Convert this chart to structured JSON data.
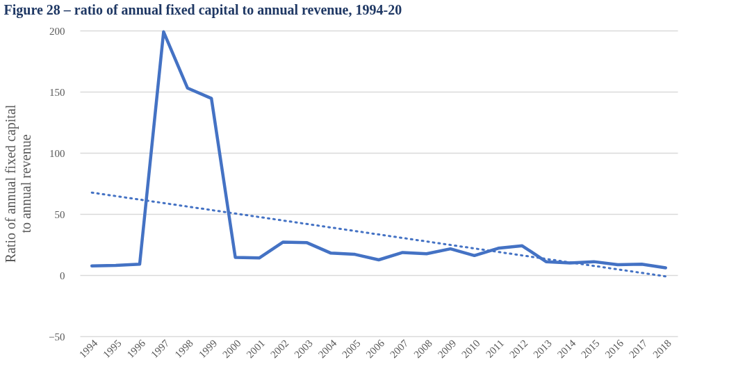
{
  "chart_data": {
    "type": "line",
    "title": "Figure 28 – ratio of annual fixed capital to annual revenue, 1994-20",
    "ylabel": "Ratio of annual fixed capital to annual revenue",
    "categories": [
      "1994",
      "1995",
      "1996",
      "1997",
      "1998",
      "1999",
      "2000",
      "2001",
      "2002",
      "2003",
      "2004",
      "2005",
      "2006",
      "2007",
      "2008",
      "2009",
      "2010",
      "2011",
      "2012",
      "2013",
      "2014",
      "2015",
      "2016",
      "2017",
      "2018"
    ],
    "series": [
      {
        "color": "#4472c4",
        "line_style": "solid",
        "values": [
          7.5,
          8,
          9,
          199,
          153,
          144.5,
          14.5,
          14,
          27,
          26.5,
          18,
          17,
          12.5,
          18.5,
          17.5,
          21.5,
          16,
          22,
          24,
          11,
          10,
          11,
          8.5,
          9,
          6
        ]
      },
      {
        "type": "line",
        "color": "#4472c4",
        "line_style": "dotted",
        "values": [
          67.5,
          null,
          null,
          null,
          null,
          null,
          null,
          null,
          null,
          null,
          null,
          null,
          null,
          null,
          null,
          null,
          null,
          null,
          null,
          null,
          null,
          null,
          null,
          null,
          -1
        ]
      }
    ],
    "ylim": [
      -50,
      200
    ],
    "yticks": [
      -50,
      0,
      50,
      100,
      150,
      200
    ],
    "grid": "y",
    "marker": "none"
  }
}
